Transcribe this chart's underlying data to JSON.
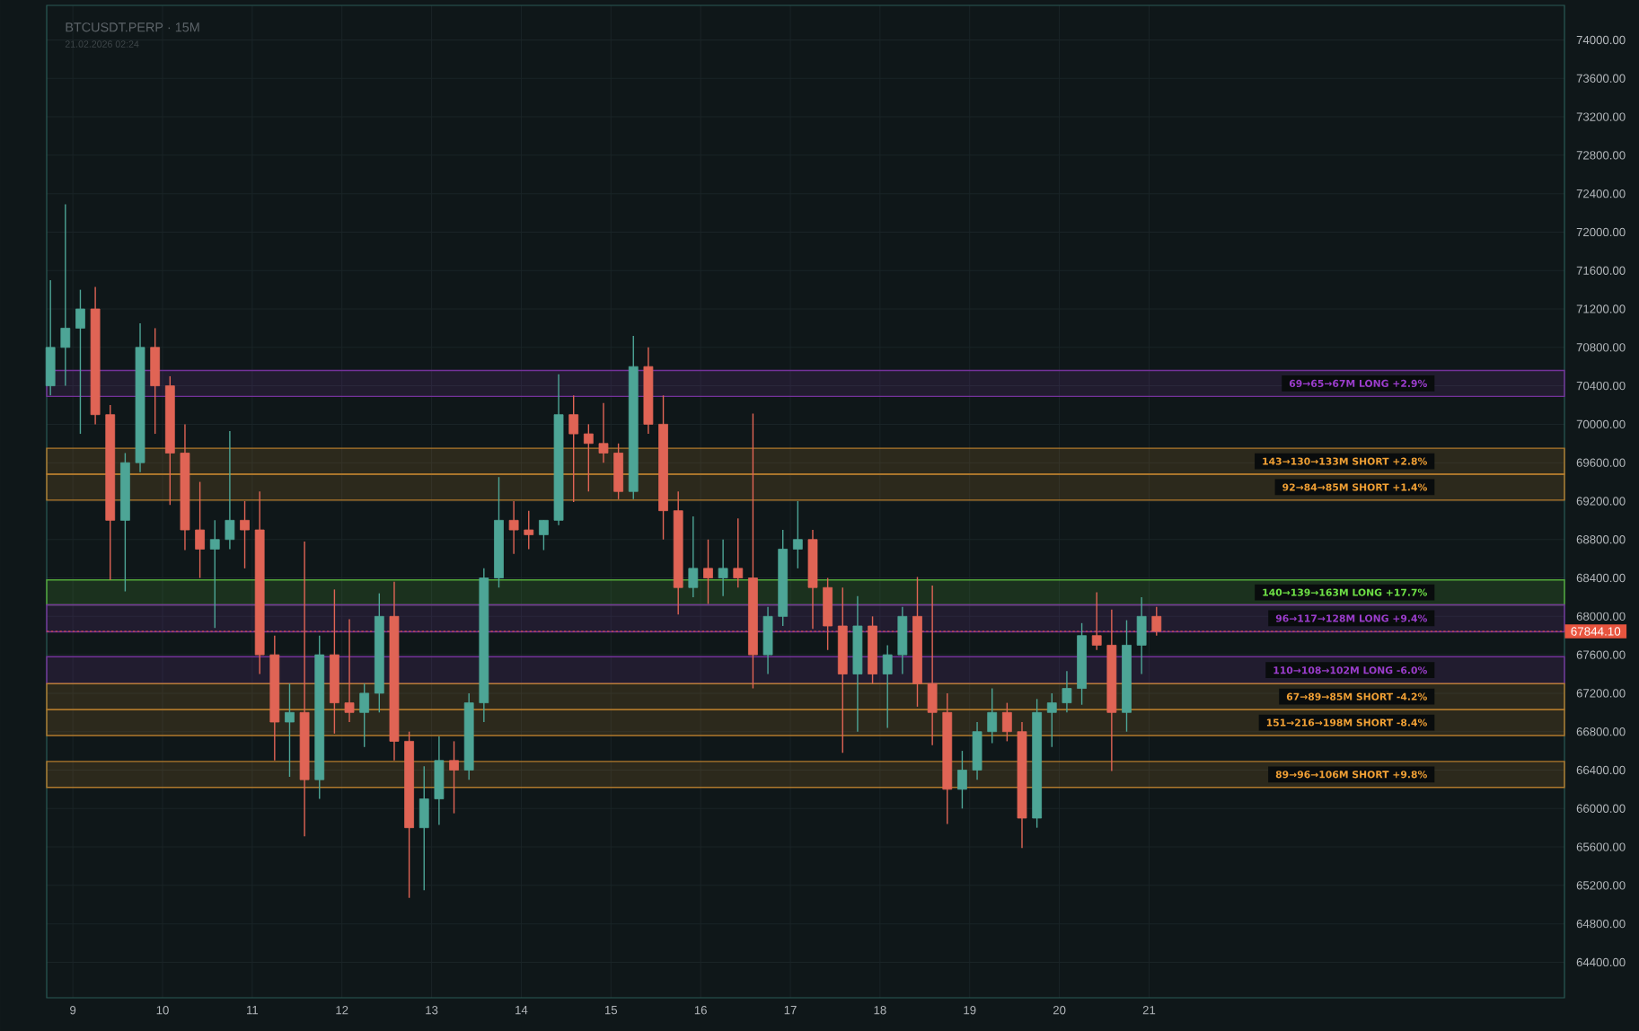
{
  "chart_data": {
    "type": "candlestick",
    "title": "BTCUSDT.PERP · 15M",
    "subtitle": "21.02.2026 02:24",
    "x": [
      "2026-02-08T18:00",
      "2026-02-08T22:00",
      "2026-02-09T02:00",
      "2026-02-09T06:00",
      "2026-02-09T10:00",
      "2026-02-09T14:00",
      "2026-02-09T18:00",
      "2026-02-09T22:00",
      "2026-02-10T02:00",
      "2026-02-10T06:00",
      "2026-02-10T10:00",
      "2026-02-10T14:00",
      "2026-02-10T18:00",
      "2026-02-10T22:00",
      "2026-02-11T02:00",
      "2026-02-11T06:00",
      "2026-02-11T10:00",
      "2026-02-11T14:00",
      "2026-02-11T18:00",
      "2026-02-11T22:00",
      "2026-02-12T02:00",
      "2026-02-12T06:00",
      "2026-02-12T10:00",
      "2026-02-12T14:00",
      "2026-02-12T18:00",
      "2026-02-12T22:00",
      "2026-02-13T02:00",
      "2026-02-13T06:00",
      "2026-02-13T10:00",
      "2026-02-13T14:00",
      "2026-02-13T18:00",
      "2026-02-13T22:00",
      "2026-02-14T02:00",
      "2026-02-14T06:00",
      "2026-02-14T10:00",
      "2026-02-14T14:00",
      "2026-02-14T18:00",
      "2026-02-14T22:00",
      "2026-02-15T02:00",
      "2026-02-15T06:00",
      "2026-02-15T10:00",
      "2026-02-15T14:00",
      "2026-02-15T18:00",
      "2026-02-15T22:00",
      "2026-02-16T02:00",
      "2026-02-16T06:00",
      "2026-02-16T10:00",
      "2026-02-16T14:00",
      "2026-02-16T18:00",
      "2026-02-16T22:00",
      "2026-02-17T02:00",
      "2026-02-17T06:00",
      "2026-02-17T10:00",
      "2026-02-17T14:00",
      "2026-02-17T18:00",
      "2026-02-17T22:00",
      "2026-02-18T02:00",
      "2026-02-18T06:00",
      "2026-02-18T10:00",
      "2026-02-18T14:00",
      "2026-02-18T18:00",
      "2026-02-18T22:00",
      "2026-02-19T02:00",
      "2026-02-19T06:00",
      "2026-02-19T10:00",
      "2026-02-19T14:00",
      "2026-02-19T18:00",
      "2026-02-19T22:00",
      "2026-02-20T02:00",
      "2026-02-20T06:00",
      "2026-02-20T10:00",
      "2026-02-20T14:00",
      "2026-02-20T18:00",
      "2026-02-20T22:00",
      "2026-02-21T02:00"
    ],
    "ohlc": [
      [
        70400,
        71500,
        70300,
        70800
      ],
      [
        70800,
        72290,
        70400,
        71000
      ],
      [
        71000,
        71400,
        69900,
        71200
      ],
      [
        71200,
        71430,
        70000,
        70100
      ],
      [
        70100,
        70200,
        68380,
        69000
      ],
      [
        69000,
        69700,
        68260,
        69600
      ],
      [
        69600,
        71050,
        69500,
        70800
      ],
      [
        70800,
        71000,
        69900,
        70400
      ],
      [
        70400,
        70500,
        69160,
        69700
      ],
      [
        69700,
        70000,
        68690,
        68900
      ],
      [
        68900,
        69400,
        68400,
        68700
      ],
      [
        68700,
        69000,
        67880,
        68800
      ],
      [
        68800,
        69930,
        68700,
        69000
      ],
      [
        69000,
        69200,
        68500,
        68900
      ],
      [
        68900,
        69300,
        67400,
        67600
      ],
      [
        67600,
        67800,
        66500,
        66900
      ],
      [
        66900,
        67300,
        66330,
        67000
      ],
      [
        67000,
        68780,
        65710,
        66300
      ],
      [
        66300,
        67800,
        66100,
        67600
      ],
      [
        67600,
        68280,
        66780,
        67100
      ],
      [
        67100,
        67970,
        66900,
        67000
      ],
      [
        67000,
        67300,
        66640,
        67200
      ],
      [
        67200,
        68240,
        67000,
        68000
      ],
      [
        68000,
        68360,
        66500,
        66700
      ],
      [
        66700,
        66800,
        65070,
        65800
      ],
      [
        65800,
        66440,
        65150,
        66100
      ],
      [
        66100,
        66750,
        65830,
        66500
      ],
      [
        66500,
        66700,
        65950,
        66400
      ],
      [
        66400,
        67200,
        66300,
        67100
      ],
      [
        67100,
        68500,
        66900,
        68400
      ],
      [
        68400,
        69450,
        68300,
        69000
      ],
      [
        69000,
        69200,
        68650,
        68900
      ],
      [
        68900,
        69100,
        68700,
        68850
      ],
      [
        68850,
        69000,
        68690,
        69000
      ],
      [
        69000,
        70520,
        68950,
        70100
      ],
      [
        70100,
        70300,
        69190,
        69900
      ],
      [
        69900,
        70000,
        69300,
        69800
      ],
      [
        69800,
        70220,
        69600,
        69700
      ],
      [
        69700,
        69800,
        69220,
        69300
      ],
      [
        69300,
        70920,
        69220,
        70600
      ],
      [
        70600,
        70800,
        69900,
        70000
      ],
      [
        70000,
        70300,
        68800,
        69100
      ],
      [
        69100,
        69300,
        68020,
        68300
      ],
      [
        68300,
        69040,
        68200,
        68500
      ],
      [
        68500,
        68800,
        68130,
        68400
      ],
      [
        68400,
        68800,
        68210,
        68500
      ],
      [
        68500,
        69020,
        68300,
        68400
      ],
      [
        68400,
        70110,
        67250,
        67600
      ],
      [
        67600,
        68100,
        67400,
        68000
      ],
      [
        68000,
        68900,
        67900,
        68700
      ],
      [
        68700,
        69200,
        68500,
        68800
      ],
      [
        68800,
        68900,
        67870,
        68300
      ],
      [
        68300,
        68400,
        67650,
        67900
      ],
      [
        67900,
        68300,
        66580,
        67400
      ],
      [
        67400,
        68210,
        66800,
        67900
      ],
      [
        67900,
        68000,
        67300,
        67400
      ],
      [
        67400,
        67700,
        66840,
        67600
      ],
      [
        67600,
        68100,
        67400,
        68000
      ],
      [
        68000,
        68410,
        67060,
        67300
      ],
      [
        67300,
        68320,
        66660,
        67000
      ],
      [
        67000,
        67200,
        65840,
        66200
      ],
      [
        66200,
        66600,
        66000,
        66400
      ],
      [
        66400,
        66900,
        66300,
        66800
      ],
      [
        66800,
        67250,
        66680,
        67000
      ],
      [
        67000,
        67100,
        66700,
        66800
      ],
      [
        66800,
        66900,
        65590,
        65900
      ],
      [
        65900,
        67140,
        65800,
        67000
      ],
      [
        67000,
        67200,
        66640,
        67100
      ],
      [
        67100,
        67430,
        67000,
        67250
      ],
      [
        67250,
        67930,
        67080,
        67800
      ],
      [
        67800,
        68250,
        67650,
        67700
      ],
      [
        67700,
        68070,
        66390,
        67000
      ],
      [
        67000,
        67960,
        66800,
        67700
      ],
      [
        67700,
        68200,
        67400,
        68000
      ],
      [
        68000,
        68100,
        67800,
        67844.1
      ]
    ],
    "colors": [
      "#4da596",
      "#4da596",
      "#4da596",
      "#e06455",
      "#e06455",
      "#4da596",
      "#4da596",
      "#e06455",
      "#e06455",
      "#e06455",
      "#e06455",
      "#4da596",
      "#4da596",
      "#e06455",
      "#e06455",
      "#e06455",
      "#4da596",
      "#e06455",
      "#4da596",
      "#e06455",
      "#e06455",
      "#4da596",
      "#4da596",
      "#e06455",
      "#e06455",
      "#4da596",
      "#4da596",
      "#e06455",
      "#4da596",
      "#4da596",
      "#4da596",
      "#e06455",
      "#e06455",
      "#4da596",
      "#4da596",
      "#e06455",
      "#e06455",
      "#e06455",
      "#e06455",
      "#4da596",
      "#e06455",
      "#e06455",
      "#e06455",
      "#4da596",
      "#e06455",
      "#4da596",
      "#e06455",
      "#e06455",
      "#4da596",
      "#4da596",
      "#4da596",
      "#e06455",
      "#e06455",
      "#e06455",
      "#4da596",
      "#e06455",
      "#4da596",
      "#4da596",
      "#e06455",
      "#e06455",
      "#e06455",
      "#4da596",
      "#4da596",
      "#4da596",
      "#e06455",
      "#e06455",
      "#4da596",
      "#4da596",
      "#4da596",
      "#4da596",
      "#e06455",
      "#e06455",
      "#4da596",
      "#4da596",
      "#e06455"
    ],
    "xlim": [
      "2026-02-08T17:00",
      "2026-02-25T15:10"
    ],
    "xticks": [
      {
        "value": "2026-02-09",
        "label": "9"
      },
      {
        "value": "2026-02-10",
        "label": "10"
      },
      {
        "value": "2026-02-11",
        "label": "11"
      },
      {
        "value": "2026-02-12",
        "label": "12"
      },
      {
        "value": "2026-02-13",
        "label": "13"
      },
      {
        "value": "2026-02-14",
        "label": "14"
      },
      {
        "value": "2026-02-15",
        "label": "15"
      },
      {
        "value": "2026-02-16",
        "label": "16"
      },
      {
        "value": "2026-02-17",
        "label": "17"
      },
      {
        "value": "2026-02-18",
        "label": "18"
      },
      {
        "value": "2026-02-19",
        "label": "19"
      },
      {
        "value": "2026-02-20",
        "label": "20"
      },
      {
        "value": "2026-02-21",
        "label": "21"
      }
    ],
    "ylim": [
      64030,
      74360
    ],
    "yticks": [
      {
        "value": 64400,
        "label": "64400.00"
      },
      {
        "value": 64800,
        "label": "64800.00"
      },
      {
        "value": 65200,
        "label": "65200.00"
      },
      {
        "value": 65600,
        "label": "65600.00"
      },
      {
        "value": 66000,
        "label": "66000.00"
      },
      {
        "value": 66400,
        "label": "66400.00"
      },
      {
        "value": 66800,
        "label": "66800.00"
      },
      {
        "value": 67200,
        "label": "67200.00"
      },
      {
        "value": 67600,
        "label": "67600.00"
      },
      {
        "value": 68000,
        "label": "68000.00"
      },
      {
        "value": 68400,
        "label": "68400.00"
      },
      {
        "value": 68800,
        "label": "68800.00"
      },
      {
        "value": 69200,
        "label": "69200.00"
      },
      {
        "value": 69600,
        "label": "69600.00"
      },
      {
        "value": 70000,
        "label": "70000.00"
      },
      {
        "value": 70400,
        "label": "70400.00"
      },
      {
        "value": 70800,
        "label": "70800.00"
      },
      {
        "value": 71200,
        "label": "71200.00"
      },
      {
        "value": 71600,
        "label": "71600.00"
      },
      {
        "value": 72000,
        "label": "72000.00"
      },
      {
        "value": 72400,
        "label": "72400.00"
      },
      {
        "value": 72800,
        "label": "72800.00"
      },
      {
        "value": 73200,
        "label": "73200.00"
      },
      {
        "value": 73600,
        "label": "73600.00"
      },
      {
        "value": 74000,
        "label": "74000.00"
      }
    ],
    "grid": true,
    "bands": [
      {
        "axis": "y",
        "from": 70290,
        "to": 70560,
        "label": "69→65→67M LONG +2.9%",
        "color": "#9b3dcc"
      },
      {
        "axis": "y",
        "from": 69480,
        "to": 69750,
        "label": "143→130→133M SHORT +2.8%",
        "color": "#f0a035"
      },
      {
        "axis": "y",
        "from": 69210,
        "to": 69480,
        "label": "92→84→85M SHORT +1.4%",
        "color": "#f0a035"
      },
      {
        "axis": "y",
        "from": 68120,
        "to": 68380,
        "label": "140→139→163M LONG +17.7%",
        "color": "#6ee046"
      },
      {
        "axis": "y",
        "from": 67840,
        "to": 68120,
        "label": "96→117→128M LONG +9.4%",
        "color": "#9b3dcc"
      },
      {
        "axis": "y",
        "from": 67300,
        "to": 67580,
        "label": "110→108→102M LONG -6.0%",
        "color": "#9b3dcc"
      },
      {
        "axis": "y",
        "from": 67030,
        "to": 67300,
        "label": "67→89→85M SHORT -4.2%",
        "color": "#f0a035"
      },
      {
        "axis": "y",
        "from": 66760,
        "to": 67030,
        "label": "151→216→198M SHORT -8.4%",
        "color": "#f0a035"
      },
      {
        "axis": "y",
        "from": 66220,
        "to": 66490,
        "label": "89→96→106M SHORT +9.8%",
        "color": "#f0a035"
      }
    ],
    "ref_lines": [
      {
        "axis": "y",
        "value": 67844.1,
        "label": "67844.10",
        "color": "#e8553f",
        "line_style": "dotted"
      }
    ]
  }
}
